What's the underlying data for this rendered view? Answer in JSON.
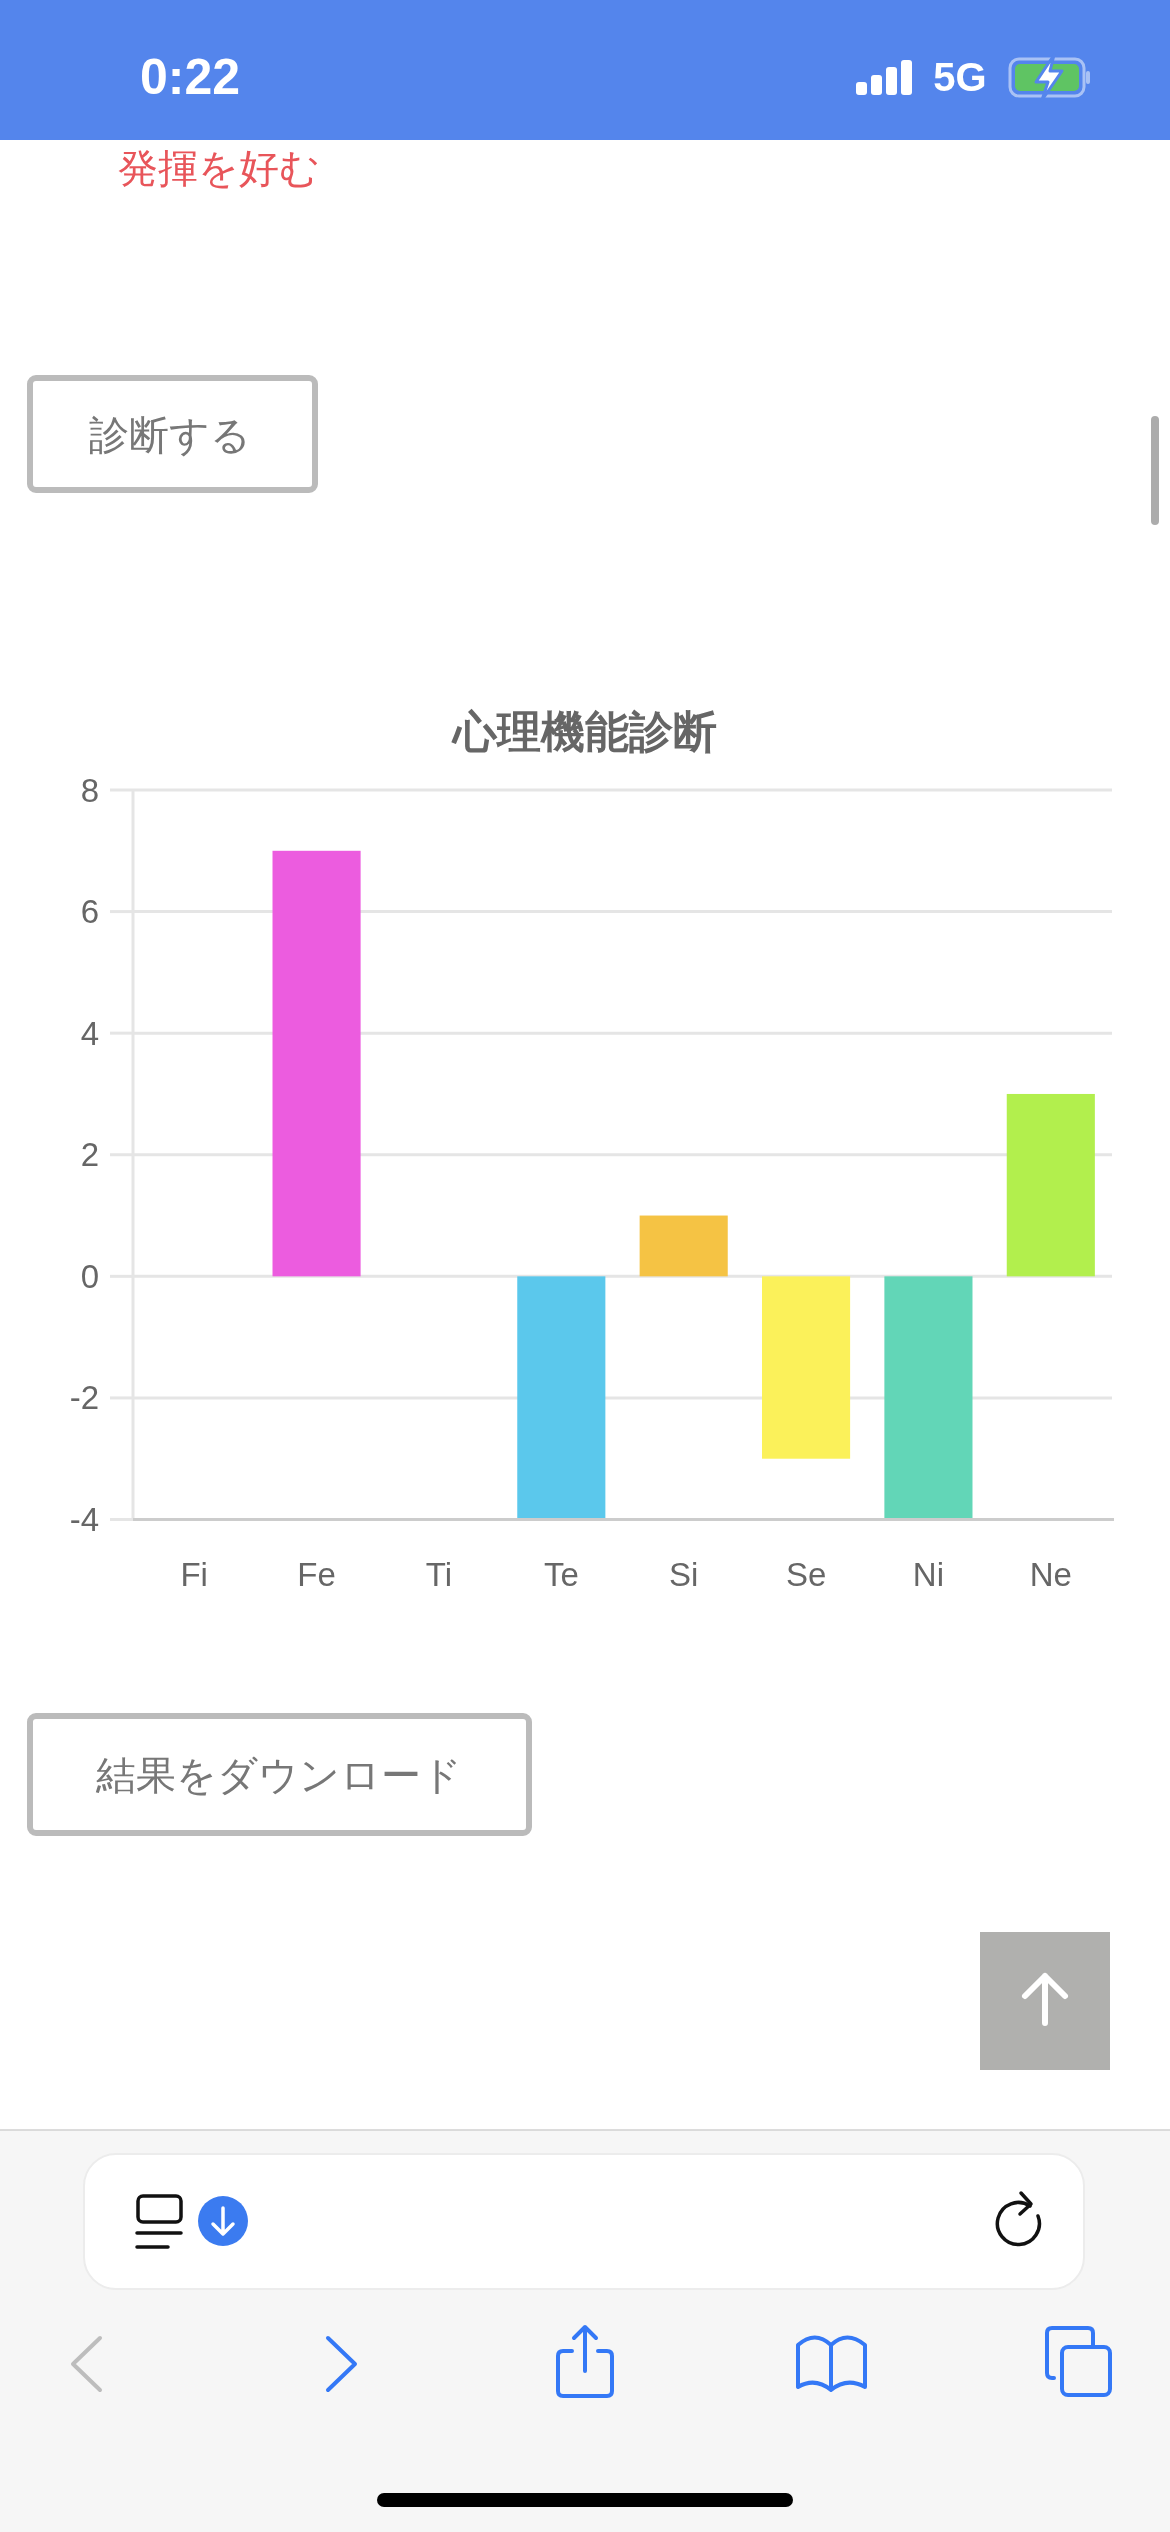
{
  "chart_data": {
    "type": "bar",
    "title": "心理機能診断",
    "categories": [
      "Fi",
      "Fe",
      "Ti",
      "Te",
      "Si",
      "Se",
      "Ni",
      "Ne"
    ],
    "values": [
      0,
      7,
      0,
      -4,
      1,
      -3,
      -4,
      3
    ],
    "colors": [
      null,
      "#ec5cdf",
      null,
      "#5bc8ec",
      "#f5c344",
      "#fbf15a",
      "#62d6b7",
      "#b2ef4d"
    ],
    "ylim": [
      -4,
      8
    ],
    "yticks": [
      -4,
      -2,
      0,
      2,
      4,
      6,
      8
    ],
    "grid": "y",
    "annotations": [
      "0:22",
      "5G",
      "発揮を好む",
      "診断する",
      "結果をダウンロード"
    ]
  }
}
